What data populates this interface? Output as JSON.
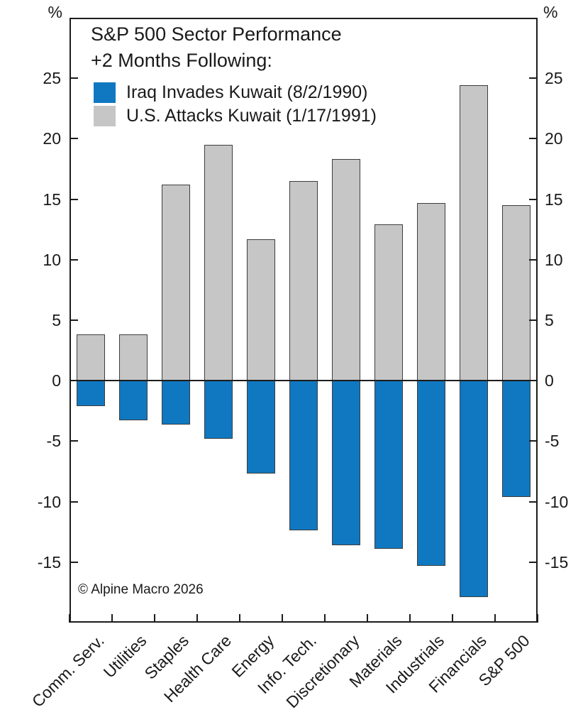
{
  "chart_data": {
    "type": "bar",
    "title": "S&P 500 Sector Performance",
    "subtitle": "+2 Months Following:",
    "y_unit": "%",
    "categories": [
      "Comm. Serv.",
      "Utilities",
      "Staples",
      "Health Care",
      "Energy",
      "Info. Tech.",
      "Discretionary",
      "Materials",
      "Industrials",
      "Financials",
      "S&P 500"
    ],
    "series": [
      {
        "name": "Iraq Invades Kuwait (8/2/1990)",
        "color": "#0f78c1",
        "values": [
          -2.1,
          -3.3,
          -3.6,
          -4.8,
          -7.7,
          -12.4,
          -13.6,
          -13.9,
          -15.3,
          -17.9,
          -9.6
        ]
      },
      {
        "name": "U.S. Attacks Kuwait (1/17/1991)",
        "color": "#c6c6c7",
        "values": [
          3.8,
          3.8,
          16.2,
          19.5,
          11.7,
          16.5,
          18.3,
          12.9,
          14.7,
          24.4,
          14.5
        ]
      }
    ],
    "y_ticks": [
      25,
      20,
      15,
      10,
      5,
      0,
      -5,
      -10,
      -15
    ],
    "ylim": [
      -20,
      30
    ],
    "grid": false,
    "legend_position": "top-left",
    "footnote": "© Alpine Macro 2026"
  }
}
